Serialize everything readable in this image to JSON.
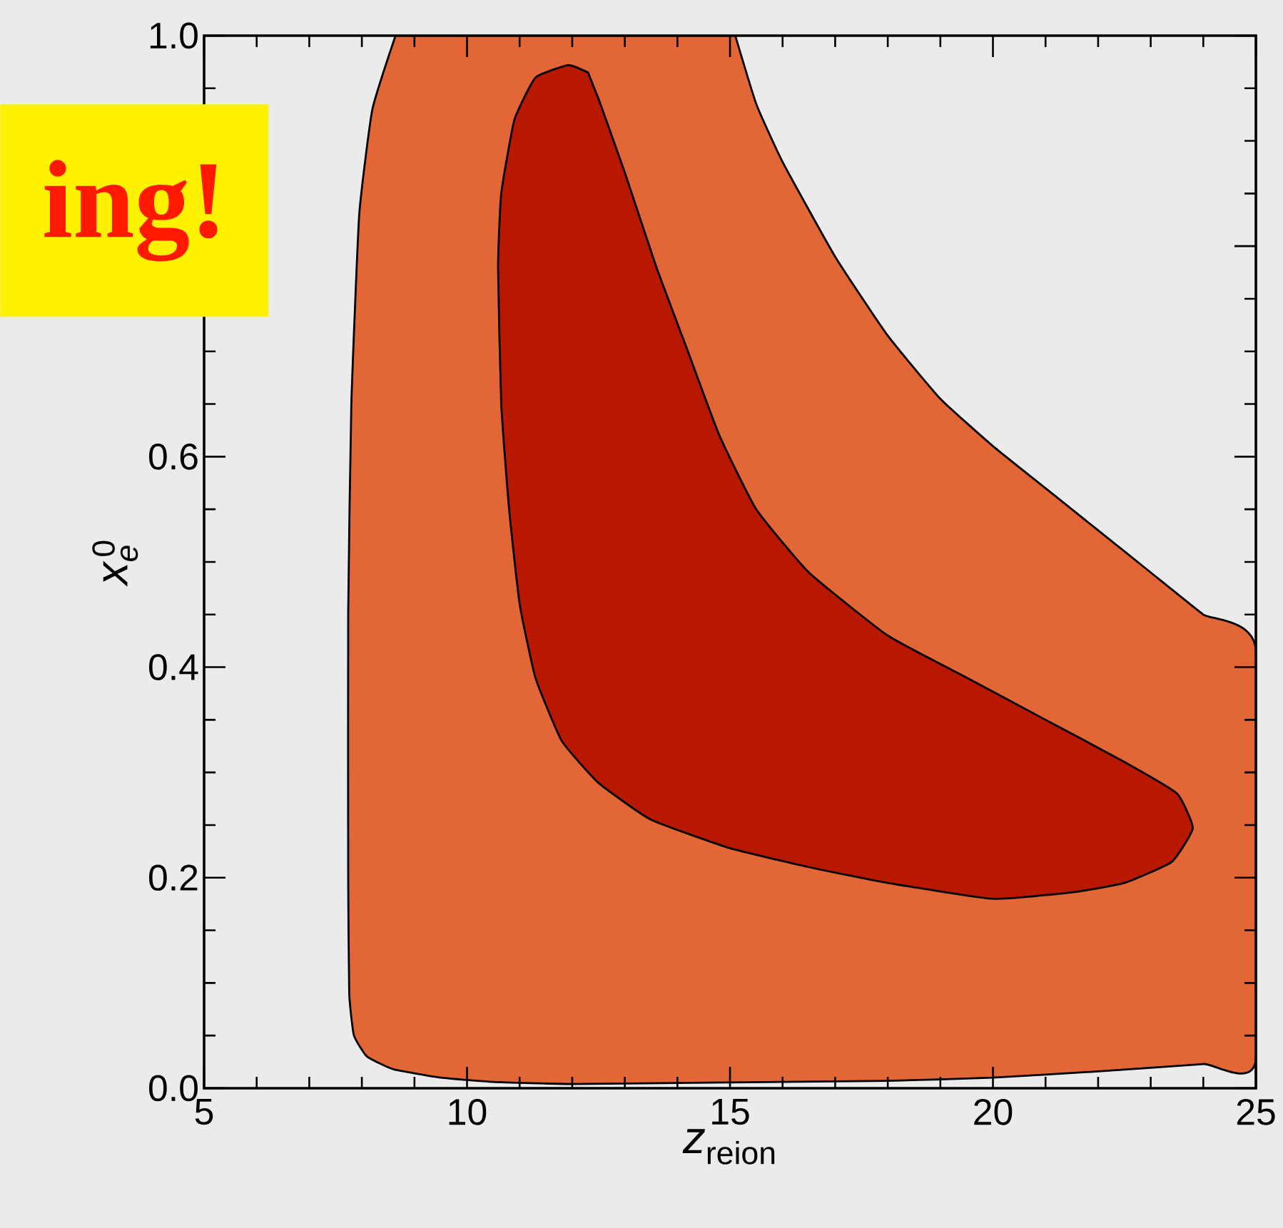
{
  "chart_data": {
    "type": "area",
    "xlabel": "\\textit{z}_{\\textrm{reion}}",
    "ylabel": "\\textit{x}_{\\textit{e}}^{\\,\\textrm{0}}",
    "annotations": [
      "ing!"
    ],
    "xlim": [
      5,
      25
    ],
    "ylim": [
      0,
      1
    ],
    "xticks": [
      5,
      10,
      15,
      20,
      25
    ],
    "yticks": [
      {
        "value": 0,
        "label": "0.0"
      },
      {
        "value": 0.2,
        "label": "0.2"
      },
      {
        "value": 0.4,
        "label": "0.4"
      },
      {
        "value": 0.6,
        "label": "0.6"
      },
      {
        "value": 0.8,
        "label": null
      },
      {
        "value": 1,
        "label": "1.0"
      }
    ],
    "grid": false,
    "series": [
      {
        "color": "#e26636",
        "x": [
          8.64,
          8.2,
          7.95,
          7.8,
          7.74,
          7.74,
          7.76,
          7.85,
          8.1,
          8.6,
          9.5,
          10.5,
          12,
          14,
          16,
          18,
          20,
          22,
          24,
          25,
          25,
          24,
          23,
          22,
          21,
          20,
          19,
          18,
          17,
          16,
          15.5,
          15.1
        ],
        "values": [
          1.0,
          0.93,
          0.83,
          0.65,
          0.45,
          0.2,
          0.09,
          0.05,
          0.03,
          0.018,
          0.01,
          0.006,
          0.004,
          0.005,
          0.006,
          0.007,
          0.01,
          0.016,
          0.023,
          0.027,
          0.417,
          0.45,
          0.49,
          0.53,
          0.57,
          0.61,
          0.655,
          0.715,
          0.79,
          0.88,
          0.935,
          1.0
        ]
      },
      {
        "color": "#b81800",
        "x": [
          12.3,
          11.92,
          11.3,
          10.9,
          10.65,
          10.59,
          10.65,
          10.8,
          11.0,
          11.3,
          11.8,
          12.5,
          13.5,
          15,
          16.5,
          18,
          20,
          21.5,
          22.5,
          23.4,
          23.8,
          23.5,
          22.5,
          21,
          19.5,
          18,
          16.5,
          15.5,
          14.8,
          14.2,
          13.6,
          13.0,
          12.5
        ],
        "values": [
          0.965,
          0.972,
          0.96,
          0.92,
          0.85,
          0.78,
          0.65,
          0.55,
          0.46,
          0.39,
          0.33,
          0.29,
          0.255,
          0.228,
          0.21,
          0.195,
          0.18,
          0.186,
          0.195,
          0.215,
          0.247,
          0.28,
          0.31,
          0.35,
          0.39,
          0.43,
          0.49,
          0.55,
          0.62,
          0.7,
          0.78,
          0.87,
          0.94
        ]
      }
    ]
  }
}
